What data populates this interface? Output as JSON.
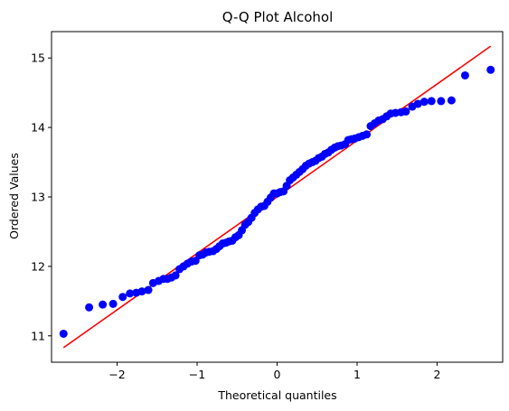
{
  "chart_data": {
    "type": "scatter",
    "title": "Q-Q Plot Alcohol",
    "xlabel": "Theoretical quantiles",
    "ylabel": "Ordered Values",
    "xlim": [
      -2.82,
      2.82
    ],
    "ylim": [
      10.62,
      15.38
    ],
    "xticks": [
      -2,
      -1,
      0,
      1,
      2
    ],
    "xtick_labels": [
      "−2",
      "−1",
      "0",
      "1",
      "2"
    ],
    "yticks": [
      11,
      12,
      13,
      14,
      15
    ],
    "ytick_labels": [
      "11",
      "12",
      "13",
      "14",
      "15"
    ],
    "grid": false,
    "legend": "none",
    "colors": {
      "points": "#0000ff",
      "fit_line": "#ff0000"
    },
    "points": [
      [
        -2.67,
        11.03
      ],
      [
        -2.35,
        11.41
      ],
      [
        -2.18,
        11.45
      ],
      [
        -2.05,
        11.46
      ],
      [
        -1.93,
        11.56
      ],
      [
        -1.84,
        11.61
      ],
      [
        -1.76,
        11.62
      ],
      [
        -1.69,
        11.64
      ],
      [
        -1.61,
        11.66
      ],
      [
        -1.55,
        11.76
      ],
      [
        -1.48,
        11.79
      ],
      [
        -1.42,
        11.82
      ],
      [
        -1.37,
        11.82
      ],
      [
        -1.32,
        11.84
      ],
      [
        -1.27,
        11.87
      ],
      [
        -1.22,
        11.96
      ],
      [
        -1.17,
        12.0
      ],
      [
        -1.12,
        12.04
      ],
      [
        -1.07,
        12.07
      ],
      [
        -1.02,
        12.08
      ],
      [
        -0.97,
        12.16
      ],
      [
        -0.93,
        12.17
      ],
      [
        -0.89,
        12.2
      ],
      [
        -0.85,
        12.21
      ],
      [
        -0.8,
        12.22
      ],
      [
        -0.76,
        12.25
      ],
      [
        -0.72,
        12.29
      ],
      [
        -0.68,
        12.33
      ],
      [
        -0.64,
        12.34
      ],
      [
        -0.6,
        12.36
      ],
      [
        -0.56,
        12.37
      ],
      [
        -0.52,
        12.42
      ],
      [
        -0.48,
        12.45
      ],
      [
        -0.44,
        12.52
      ],
      [
        -0.4,
        12.6
      ],
      [
        -0.36,
        12.64
      ],
      [
        -0.32,
        12.7
      ],
      [
        -0.28,
        12.77
      ],
      [
        -0.24,
        12.82
      ],
      [
        -0.2,
        12.86
      ],
      [
        -0.16,
        12.87
      ],
      [
        -0.12,
        12.93
      ],
      [
        -0.08,
        12.99
      ],
      [
        -0.04,
        13.05
      ],
      [
        0.0,
        13.05
      ],
      [
        0.04,
        13.07
      ],
      [
        0.08,
        13.08
      ],
      [
        0.12,
        13.16
      ],
      [
        0.16,
        13.24
      ],
      [
        0.2,
        13.28
      ],
      [
        0.24,
        13.32
      ],
      [
        0.28,
        13.36
      ],
      [
        0.32,
        13.4
      ],
      [
        0.36,
        13.45
      ],
      [
        0.4,
        13.48
      ],
      [
        0.44,
        13.5
      ],
      [
        0.48,
        13.52
      ],
      [
        0.52,
        13.56
      ],
      [
        0.56,
        13.58
      ],
      [
        0.6,
        13.62
      ],
      [
        0.64,
        13.64
      ],
      [
        0.68,
        13.68
      ],
      [
        0.72,
        13.71
      ],
      [
        0.76,
        13.73
      ],
      [
        0.8,
        13.74
      ],
      [
        0.85,
        13.76
      ],
      [
        0.89,
        13.82
      ],
      [
        0.93,
        13.83
      ],
      [
        0.97,
        13.84
      ],
      [
        1.02,
        13.86
      ],
      [
        1.07,
        13.88
      ],
      [
        1.12,
        13.9
      ],
      [
        1.17,
        14.02
      ],
      [
        1.22,
        14.06
      ],
      [
        1.27,
        14.1
      ],
      [
        1.32,
        14.12
      ],
      [
        1.37,
        14.16
      ],
      [
        1.42,
        14.2
      ],
      [
        1.48,
        14.21
      ],
      [
        1.55,
        14.22
      ],
      [
        1.61,
        14.23
      ],
      [
        1.69,
        14.3
      ],
      [
        1.76,
        14.34
      ],
      [
        1.84,
        14.37
      ],
      [
        1.93,
        14.38
      ],
      [
        2.05,
        14.38
      ],
      [
        2.18,
        14.39
      ],
      [
        2.35,
        14.75
      ],
      [
        2.67,
        14.83
      ]
    ],
    "fit_line": {
      "x": [
        -2.67,
        2.67
      ],
      "y": [
        10.83,
        15.17
      ]
    }
  }
}
